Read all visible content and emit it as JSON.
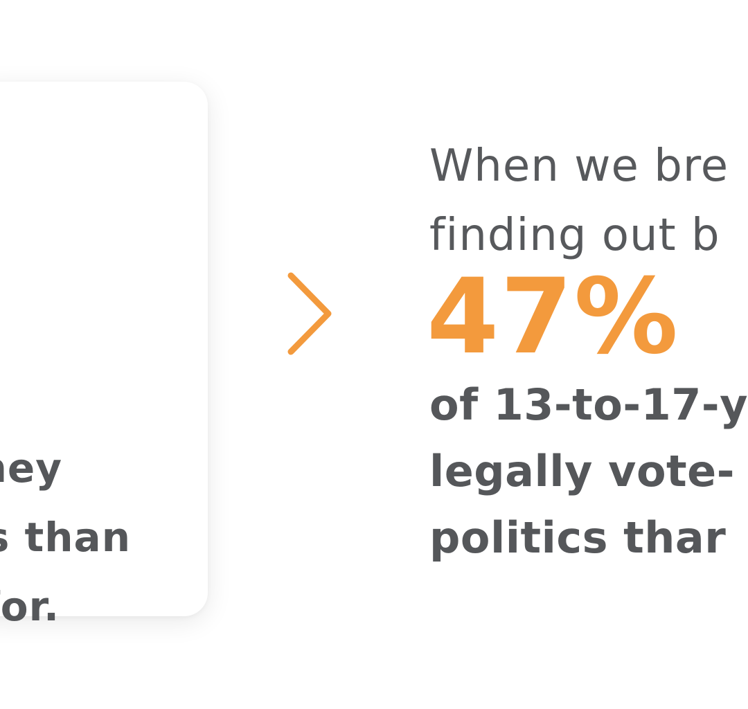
{
  "left_card": {
    "lines": [
      "ney",
      "s than",
      "for."
    ]
  },
  "arrow": {
    "icon": "chevron-right-icon",
    "color": "#f39a3d"
  },
  "right_panel": {
    "intro_lines": [
      "When we bre",
      "finding out b"
    ],
    "stat": "47%",
    "desc_lines": [
      "of 13-to-17-y",
      "legally vote-",
      "politics thar"
    ]
  },
  "colors": {
    "accent": "#f39a3d",
    "text": "#55575a",
    "background": "#ffffff"
  }
}
